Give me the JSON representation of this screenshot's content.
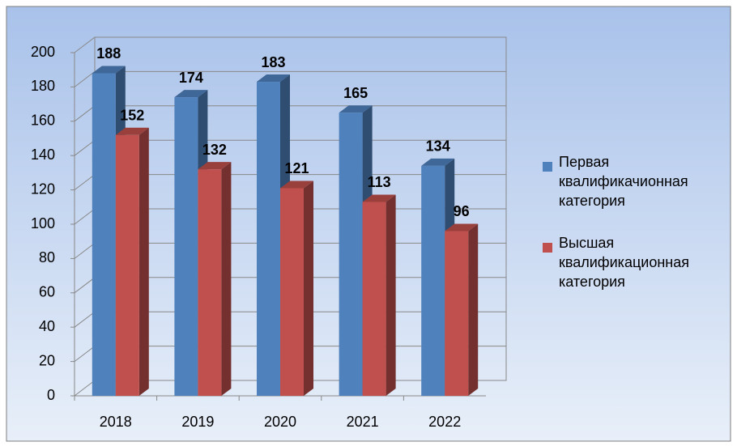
{
  "chart_data": {
    "type": "bar",
    "categories": [
      "2018",
      "2019",
      "2020",
      "2021",
      "2022"
    ],
    "series": [
      {
        "name": "Первая квалификачионная категория",
        "color": "#4f81bd",
        "values": [
          188,
          174,
          183,
          165,
          134
        ]
      },
      {
        "name": "Высшая квалификационная категория",
        "color": "#c0504d",
        "values": [
          152,
          132,
          121,
          113,
          96
        ]
      }
    ],
    "ylim": [
      0,
      200
    ],
    "yticks": [
      0,
      20,
      40,
      60,
      80,
      100,
      120,
      140,
      160,
      180,
      200
    ],
    "grid": true,
    "legend": "right"
  }
}
